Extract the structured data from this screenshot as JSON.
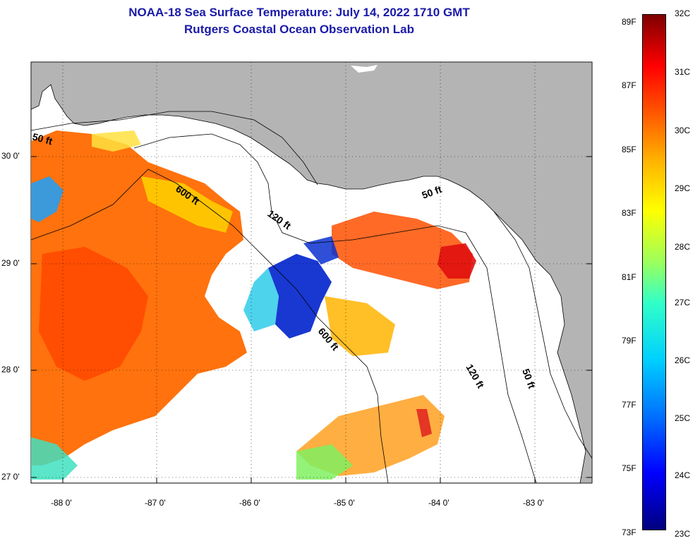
{
  "title": {
    "line1": "NOAA-18 Sea Surface Temperature:  July 14, 2022 1710 GMT",
    "line2": "Rutgers Coastal Ocean Observation Lab"
  },
  "axes": {
    "lat_labels": [
      "30 0'",
      "29 0'",
      "28 0'",
      "27 0'"
    ],
    "lon_labels": [
      "-88 0'",
      "-87 0'",
      "-86 0'",
      "-85 0'",
      "-84 0'",
      "-83 0'"
    ]
  },
  "contours": {
    "labels": [
      "50 ft",
      "600 ft",
      "120 ft",
      "50 ft",
      "600 ft",
      "120 ft",
      "50 ft"
    ]
  },
  "colorbar": {
    "fahrenheit": [
      "89F",
      "87F",
      "85F",
      "83F",
      "81F",
      "79F",
      "77F",
      "75F",
      "73F"
    ],
    "celsius": [
      "32C",
      "31C",
      "30C",
      "29C",
      "28C",
      "27C",
      "26C",
      "25C",
      "24C",
      "23C"
    ]
  },
  "colors": {
    "title": "#1a1aa8",
    "land": "#b4b4b4",
    "water": "#ffffff",
    "warm": "#ff6a00",
    "cool": "#0022cc"
  }
}
